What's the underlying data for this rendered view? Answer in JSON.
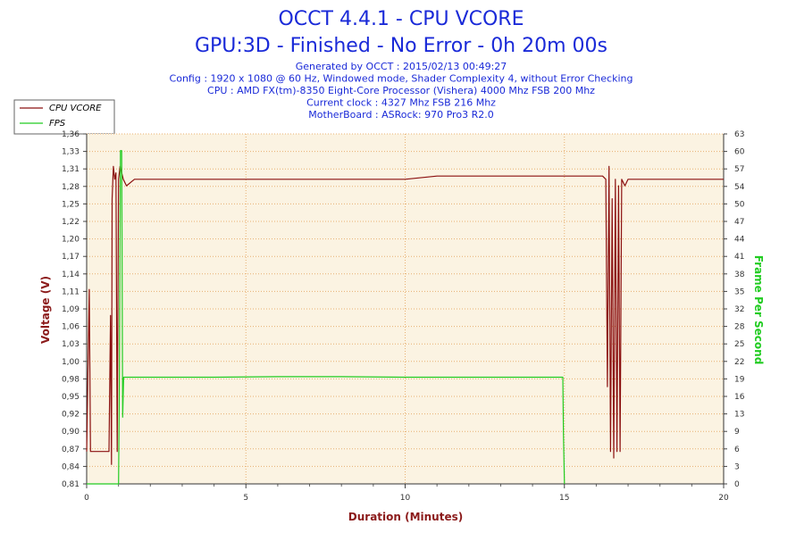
{
  "header": {
    "title_line1": "OCCT 4.4.1 - CPU VCORE",
    "title_line2": "GPU:3D - Finished - No Error - 0h 20m 00s",
    "info_lines": [
      "Generated by OCCT : 2015/02/13 00:49:27",
      "Config : 1920 x 1080 @ 60 Hz, Windowed mode, Shader Complexity 4, without Error Checking",
      "CPU : AMD FX(tm)-8350 Eight-Core Processor (Vishera) 4000 Mhz FSB 200 Mhz",
      "Current clock : 4327 Mhz FSB 216 Mhz",
      "MotherBoard : ASRock: 970 Pro3 R2.0"
    ]
  },
  "colors": {
    "title": "#1a2ad8",
    "plot_background": "#fbf3e2",
    "grid": "#e8b070",
    "vcore": "#8b1010",
    "fps": "#22cc22",
    "left_axis_title": "#8b1a1a",
    "right_axis_title": "#22cc22",
    "x_axis_title": "#8b1a1a"
  },
  "chart_data": {
    "type": "line",
    "xlabel": "Duration (Minutes)",
    "ylabel": "Voltage (V)",
    "y2label": "Frame Per Second",
    "xlim": [
      0,
      20
    ],
    "ylim": [
      0.81,
      1.35
    ],
    "y2lim": [
      0,
      63
    ],
    "x_ticks": [
      "0",
      "5",
      "10",
      "15",
      "20"
    ],
    "y_ticks": [
      "0,81",
      "0,84",
      "0,87",
      "0,90",
      "0,92",
      "0,95",
      "0,98",
      "1,00",
      "1,03",
      "1,06",
      "1,09",
      "1,11",
      "1,14",
      "1,17",
      "1,20",
      "1,22",
      "1,25",
      "1,28",
      "1,31",
      "1,33",
      "1,36"
    ],
    "y2_ticks": [
      "0",
      "3",
      "6",
      "9",
      "13",
      "16",
      "19",
      "22",
      "25",
      "28",
      "32",
      "35",
      "38",
      "41",
      "44",
      "47",
      "50",
      "54",
      "57",
      "60",
      "63"
    ],
    "grid": true,
    "legend_position": "top-left",
    "series": [
      {
        "name": "CPU VCORE",
        "axis": "left",
        "points": [
          [
            0,
            0.86
          ],
          [
            0.08,
            1.11
          ],
          [
            0.12,
            0.86
          ],
          [
            0.3,
            0.86
          ],
          [
            0.5,
            0.86
          ],
          [
            0.7,
            0.86
          ],
          [
            0.75,
            1.07
          ],
          [
            0.78,
            0.84
          ],
          [
            0.8,
            1.25
          ],
          [
            0.84,
            1.3
          ],
          [
            0.88,
            1.28
          ],
          [
            0.92,
            1.29
          ],
          [
            0.96,
            0.86
          ],
          [
            1.0,
            1.28
          ],
          [
            1.05,
            1.3
          ],
          [
            1.15,
            1.28
          ],
          [
            1.25,
            1.27
          ],
          [
            1.5,
            1.28
          ],
          [
            2,
            1.28
          ],
          [
            3,
            1.28
          ],
          [
            4,
            1.28
          ],
          [
            5,
            1.28
          ],
          [
            6,
            1.28
          ],
          [
            7,
            1.28
          ],
          [
            8,
            1.28
          ],
          [
            9,
            1.28
          ],
          [
            10,
            1.28
          ],
          [
            11,
            1.285
          ],
          [
            12,
            1.285
          ],
          [
            13,
            1.285
          ],
          [
            14,
            1.285
          ],
          [
            15,
            1.285
          ],
          [
            16,
            1.285
          ],
          [
            16.2,
            1.285
          ],
          [
            16.3,
            1.28
          ],
          [
            16.35,
            0.96
          ],
          [
            16.4,
            1.3
          ],
          [
            16.45,
            0.86
          ],
          [
            16.5,
            1.25
          ],
          [
            16.55,
            0.85
          ],
          [
            16.6,
            1.28
          ],
          [
            16.65,
            0.86
          ],
          [
            16.7,
            1.27
          ],
          [
            16.75,
            0.86
          ],
          [
            16.8,
            1.28
          ],
          [
            16.9,
            1.27
          ],
          [
            17,
            1.28
          ],
          [
            18,
            1.28
          ],
          [
            19,
            1.28
          ],
          [
            20,
            1.28
          ]
        ]
      },
      {
        "name": "FPS",
        "axis": "right",
        "points": [
          [
            0,
            0
          ],
          [
            1.0,
            0
          ],
          [
            1.03,
            20
          ],
          [
            1.06,
            60
          ],
          [
            1.1,
            60
          ],
          [
            1.13,
            12
          ],
          [
            1.16,
            19.2
          ],
          [
            1.2,
            19.2
          ],
          [
            2,
            19.2
          ],
          [
            4,
            19.2
          ],
          [
            6,
            19.3
          ],
          [
            8,
            19.3
          ],
          [
            10,
            19.2
          ],
          [
            12,
            19.2
          ],
          [
            14,
            19.2
          ],
          [
            14.95,
            19.2
          ],
          [
            14.97,
            9
          ],
          [
            15.0,
            0
          ]
        ]
      }
    ]
  }
}
